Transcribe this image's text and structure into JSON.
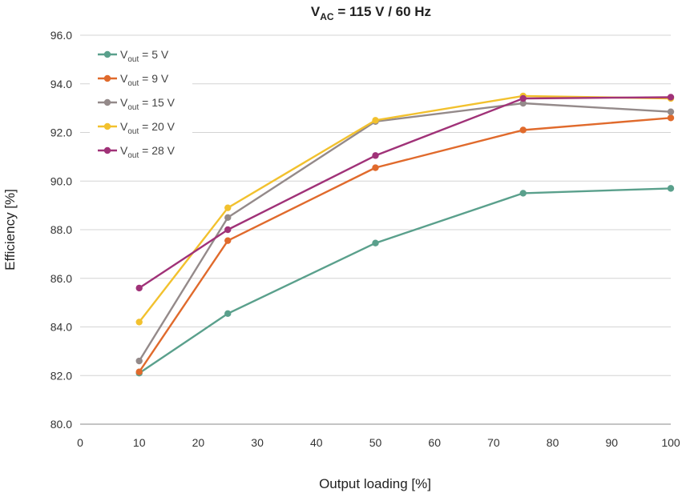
{
  "chart_data": {
    "type": "line",
    "title": {
      "main": "V",
      "sub": "AC",
      "rest": " = 115 V / 60 Hz"
    },
    "xlabel": "Output loading [%]",
    "ylabel": "Efficiency [%]",
    "xlim": [
      0,
      100
    ],
    "ylim": [
      80,
      96
    ],
    "xticks": [
      0,
      10,
      20,
      30,
      40,
      50,
      60,
      70,
      80,
      90,
      100
    ],
    "yticks": [
      "80.0",
      "82.0",
      "84.0",
      "86.0",
      "88.0",
      "90.0",
      "92.0",
      "94.0",
      "96.0"
    ],
    "grid": "horizontal",
    "legend_position": "top-left",
    "x": [
      10,
      25,
      50,
      75,
      100
    ],
    "series": [
      {
        "prefix": "V",
        "sub": "out",
        "suffix": " = 5 V",
        "color": "#5aa08c",
        "values": [
          82.1,
          84.55,
          87.45,
          89.5,
          89.7
        ]
      },
      {
        "prefix": "V",
        "sub": "out",
        "suffix": " = 9 V",
        "color": "#e06a2c",
        "values": [
          82.15,
          87.55,
          90.55,
          92.1,
          92.6
        ]
      },
      {
        "prefix": "V",
        "sub": "out",
        "suffix": " = 15 V",
        "color": "#948a8a",
        "values": [
          82.6,
          88.5,
          92.45,
          93.2,
          92.85
        ]
      },
      {
        "prefix": "V",
        "sub": "out",
        "suffix": " = 20 V",
        "color": "#f2c12e",
        "values": [
          84.2,
          88.9,
          92.5,
          93.5,
          93.4
        ]
      },
      {
        "prefix": "V",
        "sub": "out",
        "suffix": " = 28 V",
        "color": "#a03278",
        "values": [
          85.6,
          88.0,
          91.05,
          93.4,
          93.45
        ]
      }
    ]
  }
}
